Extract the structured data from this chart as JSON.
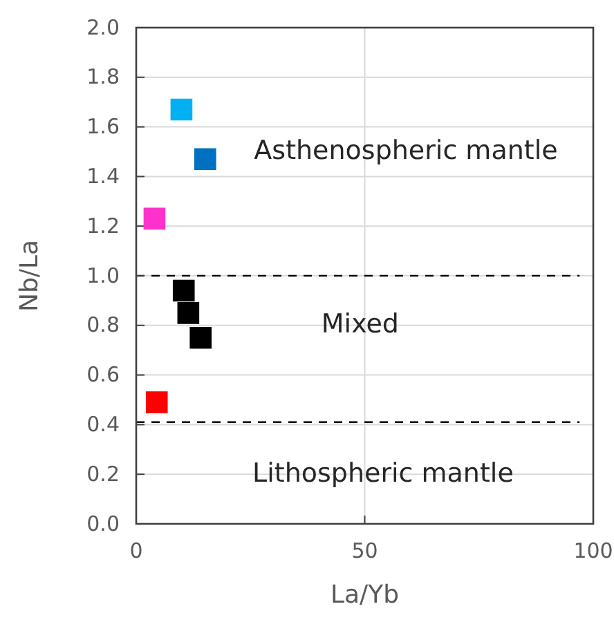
{
  "chart_data": {
    "type": "scatter",
    "xlabel": "La/Yb",
    "ylabel": "Nb/La",
    "x": [
      9.9,
      15.1,
      4.0,
      10.4,
      11.4,
      14.1,
      4.5
    ],
    "values": [
      1.67,
      1.47,
      1.23,
      0.94,
      0.85,
      0.75,
      0.49
    ],
    "colors": [
      "#00b0f0",
      "#0070c0",
      "#ff33cc",
      "#000000",
      "#000000",
      "#000000",
      "#ff0000"
    ],
    "marker": "square",
    "xlim": [
      0,
      100
    ],
    "xticks": [
      0,
      50,
      100
    ],
    "ylim": [
      0,
      2
    ],
    "yticks": [
      {
        "value": 0,
        "label": "0.0"
      },
      {
        "value": 0.2,
        "label": "0.2"
      },
      {
        "value": 0.4,
        "label": "0.4"
      },
      {
        "value": 0.6,
        "label": "0.6"
      },
      {
        "value": 0.8,
        "label": "0.8"
      },
      {
        "value": 1,
        "label": "1.0"
      },
      {
        "value": 1.2,
        "label": "1.2"
      },
      {
        "value": 1.4,
        "label": "1.4"
      },
      {
        "value": 1.6,
        "label": "1.6"
      },
      {
        "value": 1.8,
        "label": "1.8"
      },
      {
        "value": 2,
        "label": "2.0"
      }
    ],
    "grid": true,
    "ref_lines": [
      {
        "axis": "y",
        "value": 1.0,
        "color": "#000000",
        "line_style": "dashed"
      },
      {
        "axis": "y",
        "value": 0.41,
        "color": "#000000",
        "line_style": "dashed"
      }
    ],
    "annotations": [
      "Asthenospheric mantle",
      "Mixed",
      "Lithospheric mantle"
    ]
  }
}
